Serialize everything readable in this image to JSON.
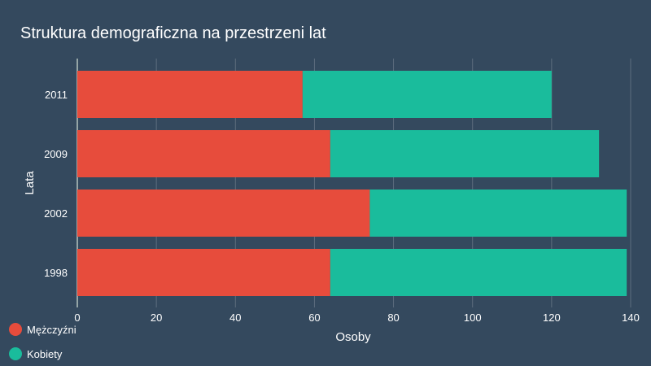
{
  "chart_data": {
    "type": "bar",
    "orientation": "horizontal",
    "stacked": true,
    "title": "Struktura demograficzna na przestrzeni lat",
    "xlabel": "Osoby",
    "ylabel": "Lata",
    "categories": [
      "2011",
      "2009",
      "2002",
      "1998"
    ],
    "series": [
      {
        "name": "Mężczyźni",
        "color": "#e74c3c",
        "values": [
          57,
          64,
          74,
          64
        ]
      },
      {
        "name": "Kobiety",
        "color": "#1abc9c",
        "values": [
          63,
          68,
          65,
          75
        ]
      }
    ],
    "xlim": [
      0,
      140
    ],
    "xticks": [
      0,
      20,
      40,
      60,
      80,
      100,
      120,
      140
    ],
    "grid": "vertical",
    "legend_position": "bottom-left"
  },
  "colors": {
    "background": "#34495e",
    "grid": "#5d6d7e",
    "text": "#ffffff"
  }
}
